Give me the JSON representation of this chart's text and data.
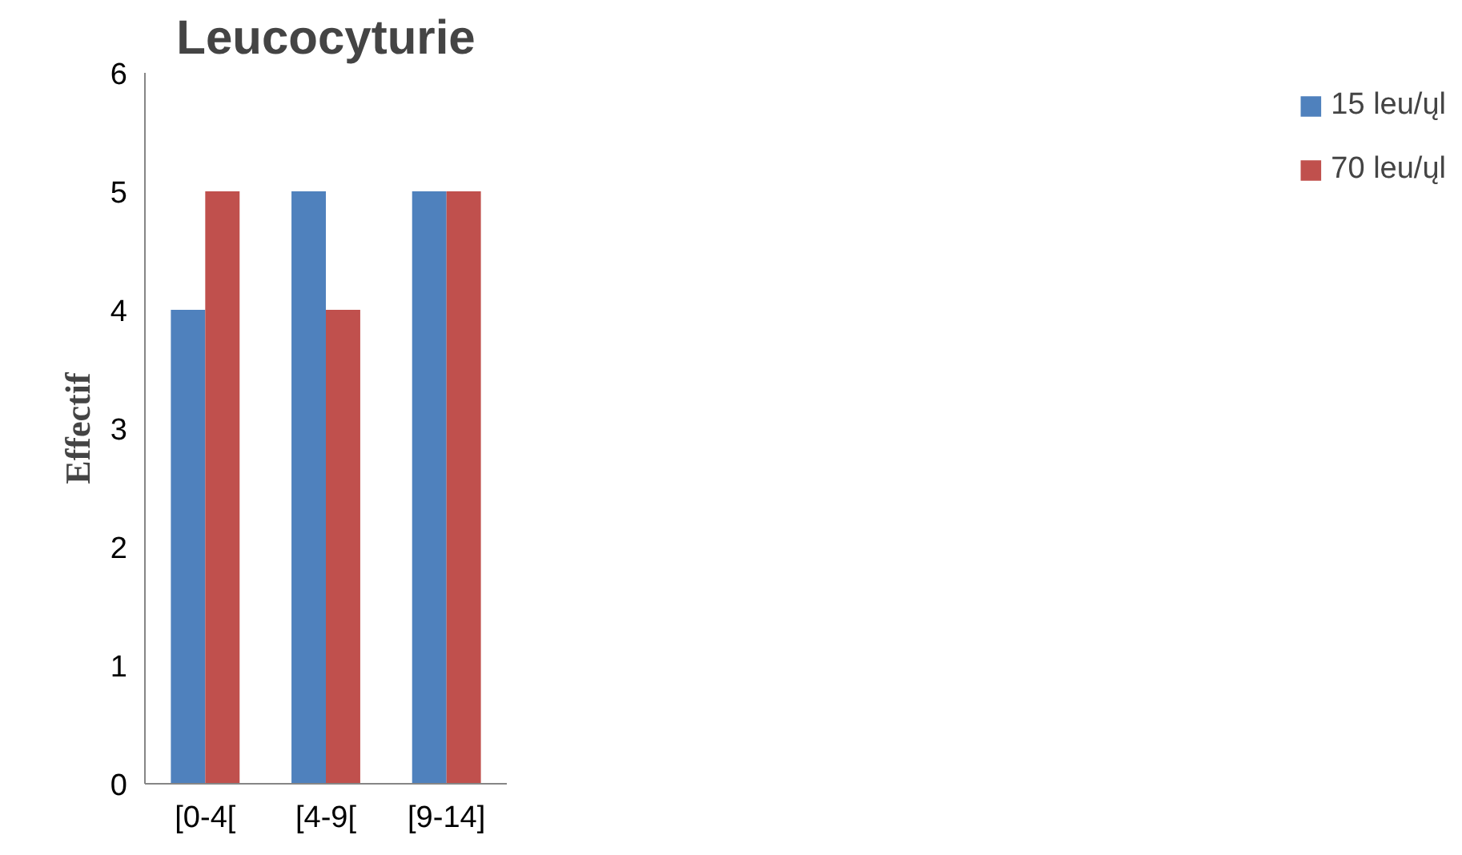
{
  "chart_data": {
    "type": "bar",
    "title": "Leucocyturie",
    "ylabel": "Effectif",
    "categories": [
      "[0-4[",
      "[4-9[",
      "[9-14]"
    ],
    "series": [
      {
        "name": "15 leu/ųl",
        "color": "#4f81bd",
        "values": [
          4,
          5,
          5
        ]
      },
      {
        "name": "70 leu/ųl",
        "color": "#c0504d",
        "values": [
          5,
          4,
          5
        ]
      }
    ],
    "ylim": [
      0,
      6
    ],
    "yticks": [
      0,
      1,
      2,
      3,
      4,
      5,
      6
    ],
    "grid": false,
    "legend": "right"
  }
}
